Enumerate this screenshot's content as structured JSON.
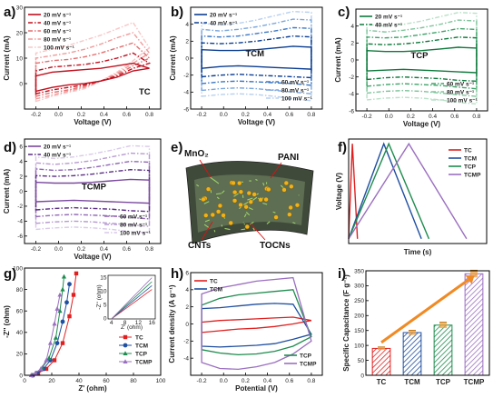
{
  "panels": [
    {
      "id": "a",
      "type": "line",
      "inline_label": "TC",
      "xlabel": "Voltage (V)",
      "ylabel": "Current (mA)",
      "xlim": [
        -0.3,
        0.9
      ],
      "ylim": [
        -10,
        30
      ],
      "xticks": [
        -0.2,
        0.0,
        0.2,
        0.4,
        0.6,
        0.8
      ],
      "yticks": [
        -10,
        0,
        10,
        20,
        30
      ],
      "ytick_labels": [
        "",
        "0",
        "10",
        "20",
        "30"
      ],
      "legend": "top-left",
      "series": [
        {
          "name": "20 mV s⁻¹",
          "color": "#c0111f",
          "style": "solid",
          "lower": [
            -3,
            -1.5,
            -0.5,
            0,
            1,
            2.5,
            5,
            6
          ],
          "upper": [
            3,
            4.5,
            5,
            5.5,
            6,
            7,
            8,
            6
          ]
        },
        {
          "name": "40 mV s⁻¹",
          "color": "#c0111f",
          "style": "dashdot",
          "lower": [
            -4,
            -2.5,
            -1.5,
            -0.5,
            1,
            3,
            6,
            8
          ],
          "upper": [
            5,
            6.5,
            7,
            7.5,
            8.5,
            10,
            12,
            8
          ]
        },
        {
          "name": "60 mV s⁻¹",
          "color": "#e36f6f",
          "style": "dashdot",
          "lower": [
            -5,
            -3.5,
            -2.5,
            -1,
            1,
            3.5,
            7,
            10
          ],
          "upper": [
            8,
            9,
            9.5,
            10.5,
            12,
            14,
            16,
            10
          ]
        },
        {
          "name": "80 mV s⁻¹",
          "color": "#ef9c9c",
          "style": "dashdot",
          "lower": [
            -6,
            -4.5,
            -3,
            -1.5,
            1,
            4,
            8,
            12
          ],
          "upper": [
            10,
            11,
            12,
            13.5,
            15.5,
            18,
            20,
            12
          ]
        },
        {
          "name": "100 mV s⁻¹",
          "color": "#f7c7c7",
          "style": "dashdot",
          "lower": [
            -7,
            -5,
            -3.5,
            -2,
            1,
            4.5,
            9,
            14
          ],
          "upper": [
            12,
            13.5,
            15,
            17,
            19,
            21.5,
            24,
            14
          ]
        }
      ]
    },
    {
      "id": "b",
      "type": "line",
      "inline_label": "TCM",
      "xlabel": "Voltage (V)",
      "ylabel": "Current (mA)",
      "xlim": [
        -0.3,
        0.9
      ],
      "ylim": [
        -6,
        6
      ],
      "xticks": [
        -0.2,
        0.0,
        0.2,
        0.4,
        0.6,
        0.8
      ],
      "yticks": [
        -6,
        -4,
        -2,
        0,
        2,
        4,
        6
      ],
      "ytick_labels": [
        "-6",
        "-4",
        "-2",
        "0",
        "2",
        "4",
        ""
      ],
      "legend": "top-left, bottom-right",
      "series": [
        {
          "name": "20 mV s⁻¹",
          "color": "#0b3d91",
          "style": "solid",
          "lower": [
            -1.2,
            -1,
            -0.9,
            -1,
            -1.1,
            -1.2,
            -1.3
          ],
          "upper": [
            1,
            0.9,
            0.9,
            1,
            1.2,
            1.4,
            1.3
          ]
        },
        {
          "name": "40 mV s⁻¹",
          "color": "#0b3d91",
          "style": "dashdot",
          "lower": [
            -2.2,
            -2,
            -1.9,
            -2,
            -2.1,
            -2.2,
            -2.3
          ],
          "upper": [
            1.8,
            1.7,
            1.8,
            2,
            2.3,
            2.6,
            2.5
          ]
        },
        {
          "name": "60 mV s⁻¹",
          "color": "#3d78c4",
          "style": "dashdot",
          "lower": [
            -3,
            -2.8,
            -2.7,
            -2.8,
            -2.9,
            -3,
            -3.2
          ],
          "upper": [
            2.6,
            2.5,
            2.6,
            2.9,
            3.2,
            3.6,
            3.5
          ]
        },
        {
          "name": "80 mV s⁻¹",
          "color": "#7ca7dd",
          "style": "dashdot",
          "lower": [
            -3.8,
            -3.6,
            -3.5,
            -3.6,
            -3.8,
            -4,
            -4.2
          ],
          "upper": [
            3.4,
            3.2,
            3.4,
            3.7,
            4.1,
            4.6,
            4.5
          ]
        },
        {
          "name": "100 mV s⁻¹",
          "color": "#b8d0ef",
          "style": "dashdot",
          "lower": [
            -4.5,
            -4.3,
            -4.2,
            -4.3,
            -4.5,
            -4.8,
            -5
          ],
          "upper": [
            4.1,
            3.9,
            4.1,
            4.5,
            5,
            5.5,
            5.4
          ]
        }
      ]
    },
    {
      "id": "c",
      "type": "line",
      "inline_label": "TCP",
      "xlabel": "Voltage (V)",
      "ylabel": "Current (mA)",
      "xlim": [
        -0.3,
        0.9
      ],
      "ylim": [
        -6,
        6
      ],
      "xticks": [
        -0.2,
        0.0,
        0.2,
        0.4,
        0.6,
        0.8
      ],
      "yticks": [
        -6,
        -4,
        -2,
        0,
        2,
        4,
        6
      ],
      "ytick_labels": [
        "-6",
        "-4",
        "-2",
        "0",
        "2",
        "4",
        ""
      ],
      "legend": "top-left, bottom-right",
      "series": [
        {
          "name": "20 mV s⁻¹",
          "color": "#0f7a3c",
          "style": "solid",
          "lower": [
            -1.3,
            -1.2,
            -1.1,
            -1.2,
            -1.3,
            -1.4,
            -1.5
          ],
          "upper": [
            1.1,
            1,
            1,
            1.1,
            1.3,
            1.5,
            1.4
          ]
        },
        {
          "name": "40 mV s⁻¹",
          "color": "#0f7a3c",
          "style": "dashdot",
          "lower": [
            -2.3,
            -2.1,
            -2,
            -2.1,
            -2.2,
            -2.4,
            -2.5
          ],
          "upper": [
            1.9,
            1.8,
            1.9,
            2.1,
            2.4,
            2.7,
            2.6
          ]
        },
        {
          "name": "60 mV s⁻¹",
          "color": "#3fa36a",
          "style": "dashdot",
          "lower": [
            -3.1,
            -2.9,
            -2.8,
            -2.9,
            -3,
            -3.2,
            -3.4
          ],
          "upper": [
            2.7,
            2.6,
            2.7,
            3,
            3.3,
            3.7,
            3.6
          ]
        },
        {
          "name": "80 mV s⁻¹",
          "color": "#7fc49b",
          "style": "dashdot",
          "lower": [
            -3.9,
            -3.7,
            -3.6,
            -3.7,
            -3.9,
            -4.1,
            -4.3
          ],
          "upper": [
            3.5,
            3.3,
            3.5,
            3.8,
            4.2,
            4.7,
            4.6
          ]
        },
        {
          "name": "100 mV s⁻¹",
          "color": "#b9e0c8",
          "style": "dashdot",
          "lower": [
            -4.7,
            -4.5,
            -4.4,
            -4.5,
            -4.7,
            -5,
            -5.2
          ],
          "upper": [
            4.2,
            4,
            4.2,
            4.6,
            5.1,
            5.6,
            5.5
          ]
        }
      ]
    },
    {
      "id": "d",
      "type": "line",
      "inline_label": "TCMP",
      "xlabel": "Voltage (V)",
      "ylabel": "Current (mA)",
      "xlim": [
        -0.3,
        0.9
      ],
      "ylim": [
        -7,
        7
      ],
      "xticks": [
        -0.2,
        0.0,
        0.2,
        0.4,
        0.6,
        0.8
      ],
      "yticks": [
        -6,
        -4,
        -2,
        0,
        2,
        4,
        6
      ],
      "ytick_labels": [
        "-6",
        "-4",
        "-2",
        "0",
        "2",
        "4",
        "6"
      ],
      "legend": "top-left, bottom-right",
      "series": [
        {
          "name": "20 mV s⁻¹",
          "color": "#7b4a9e",
          "style": "solid",
          "lower": [
            -1.4,
            -1.3,
            -1.2,
            -1.3,
            -1.4,
            -1.5,
            -1.6
          ],
          "upper": [
            1.2,
            1.1,
            1.1,
            1.2,
            1.4,
            1.6,
            1.5
          ]
        },
        {
          "name": "40 mV s⁻¹",
          "color": "#5a2d82",
          "style": "dashdot",
          "lower": [
            -2.5,
            -2.3,
            -2.2,
            -2.3,
            -2.4,
            -2.6,
            -2.7
          ],
          "upper": [
            2.1,
            2,
            2.1,
            2.3,
            2.6,
            2.9,
            2.8
          ]
        },
        {
          "name": "60 mV s⁻¹",
          "color": "#9067b3",
          "style": "dashdot",
          "lower": [
            -3.4,
            -3.2,
            -3.1,
            -3.2,
            -3.3,
            -3.5,
            -3.7
          ],
          "upper": [
            3,
            2.8,
            2.9,
            3.2,
            3.6,
            4,
            3.9
          ]
        },
        {
          "name": "80 mV s⁻¹",
          "color": "#b79ad0",
          "style": "dashdot",
          "lower": [
            -4.3,
            -4.1,
            -4,
            -4.1,
            -4.3,
            -4.5,
            -4.7
          ],
          "upper": [
            3.8,
            3.6,
            3.8,
            4.1,
            4.6,
            5.1,
            5
          ]
        },
        {
          "name": "100 mV s⁻¹",
          "color": "#d9c9e8",
          "style": "dashdot",
          "lower": [
            -5.1,
            -4.9,
            -4.8,
            -4.9,
            -5.1,
            -5.4,
            -5.6
          ],
          "upper": [
            4.6,
            4.4,
            4.6,
            5,
            5.5,
            6.1,
            6
          ]
        }
      ]
    },
    {
      "id": "e",
      "type": "diagram",
      "labels": {
        "mno2": "MnO₂",
        "pani": "PANI",
        "cnts": "CNTs",
        "tocns": "TOCNs"
      }
    },
    {
      "id": "f",
      "type": "line",
      "xlabel": "Time (s)",
      "ylabel": "Voltage (V)",
      "xlim": [
        0,
        55
      ],
      "ylim": [
        -0.25,
        0.85
      ],
      "legend": "top-right",
      "series": [
        {
          "name": "TC",
          "color": "#e02020",
          "x": [
            0,
            1.5,
            3.5
          ],
          "y": [
            -0.2,
            0.8,
            -0.2
          ]
        },
        {
          "name": "TCM",
          "color": "#1f4fa0",
          "x": [
            0,
            14,
            29
          ],
          "y": [
            -0.2,
            0.8,
            -0.2
          ]
        },
        {
          "name": "TCP",
          "color": "#1e8c4e",
          "x": [
            0,
            16,
            32
          ],
          "y": [
            -0.2,
            0.8,
            -0.2
          ]
        },
        {
          "name": "TCMP",
          "color": "#9b6fc0",
          "x": [
            0,
            24,
            47
          ],
          "y": [
            -0.2,
            0.8,
            -0.2
          ]
        }
      ]
    },
    {
      "id": "g",
      "type": "scatter",
      "xlabel": "Z' (ohm)",
      "ylabel": "-Z'' (ohm)",
      "xlim": [
        0,
        100
      ],
      "ylim": [
        0,
        100
      ],
      "xticks": [
        0,
        20,
        40,
        60,
        80,
        100
      ],
      "yticks": [
        0,
        20,
        40,
        60,
        80,
        100
      ],
      "legend": "bottom-right",
      "inset": {
        "xlabel": "Z' (ohm)",
        "ylabel": "-Z'' (ohm)",
        "xticks": [
          4,
          8,
          12,
          16
        ],
        "yticks": [
          0,
          5,
          10,
          15
        ],
        "xlim": [
          3,
          17
        ],
        "ylim": [
          0,
          16
        ]
      },
      "series": [
        {
          "name": "TC",
          "color": "#e02020",
          "marker": "square",
          "x": [
            6,
            10,
            16,
            22,
            28,
            33,
            36,
            38
          ],
          "y": [
            0,
            2,
            6,
            14,
            30,
            55,
            75,
            95
          ]
        },
        {
          "name": "TCM",
          "color": "#1f4fa0",
          "marker": "circle",
          "x": [
            6,
            9,
            14,
            19,
            24,
            28,
            31,
            33
          ],
          "y": [
            0,
            2,
            6,
            14,
            30,
            50,
            68,
            85
          ]
        },
        {
          "name": "TCP",
          "color": "#1e8c4e",
          "marker": "triangle",
          "x": [
            5,
            8,
            13,
            18,
            23,
            26,
            28,
            29
          ],
          "y": [
            0,
            2,
            7,
            16,
            35,
            60,
            80,
            92
          ]
        },
        {
          "name": "TCMP",
          "color": "#9b6fc0",
          "marker": "triangle",
          "x": [
            5,
            8,
            12,
            16,
            19,
            22,
            24,
            26
          ],
          "y": [
            0,
            2,
            6,
            14,
            30,
            48,
            62,
            75
          ]
        }
      ]
    },
    {
      "id": "h",
      "type": "line",
      "xlabel": "Potential (V)",
      "ylabel": "Current density (A g⁻¹)",
      "xlim": [
        -0.3,
        0.9
      ],
      "ylim": [
        -6,
        6
      ],
      "xticks": [
        -0.2,
        0.0,
        0.2,
        0.4,
        0.6,
        0.8
      ],
      "yticks": [
        -6,
        -4,
        -2,
        0,
        2,
        4,
        6
      ],
      "ytick_labels": [
        "",
        "-4",
        "-2",
        "0",
        "2",
        "4",
        "6"
      ],
      "legend": "top-left, bottom-right",
      "series": [
        {
          "name": "TC",
          "color": "#e02020",
          "lower": [
            -1,
            -0.8,
            -0.6,
            -0.5,
            -0.3,
            0,
            0.4
          ],
          "upper": [
            0.2,
            0.4,
            0.5,
            0.6,
            0.7,
            0.8,
            0.4
          ]
        },
        {
          "name": "TCM",
          "color": "#1f4fa0",
          "lower": [
            -2.6,
            -2.7,
            -2.6,
            -2.5,
            -2.3,
            -1.8,
            -1.2
          ],
          "upper": [
            1.8,
            1.9,
            2.1,
            2.3,
            2.4,
            2.3,
            -1.2
          ]
        },
        {
          "name": "TCP",
          "color": "#1e8c4e",
          "lower": [
            -3,
            -3.4,
            -3.6,
            -3.5,
            -3.2,
            -2.6,
            -1.5
          ],
          "upper": [
            2.2,
            3,
            3.4,
            3.6,
            3.8,
            4,
            -1.5
          ]
        },
        {
          "name": "TCMP",
          "color": "#9b6fc0",
          "lower": [
            -4.5,
            -5.2,
            -5.3,
            -5,
            -4.5,
            -3.5,
            -2
          ],
          "upper": [
            3.5,
            4.2,
            4.6,
            5,
            5.2,
            5.4,
            -2
          ]
        }
      ]
    },
    {
      "id": "i",
      "type": "bar",
      "ylabel": "Specific Capacitance (F g⁻¹)",
      "ylim": [
        0,
        350
      ],
      "yticks": [
        0,
        50,
        100,
        150,
        200,
        250,
        300,
        350
      ],
      "categories": [
        "TC",
        "TCM",
        "TCP",
        "TCMP"
      ],
      "values": [
        90,
        143,
        168,
        340
      ],
      "errors": [
        5,
        8,
        10,
        12
      ],
      "colors": [
        "#e02020",
        "#1f4fa0",
        "#1e8c4e",
        "#9b6fc0"
      ],
      "trend_arrow_color": "#f08a24"
    }
  ]
}
